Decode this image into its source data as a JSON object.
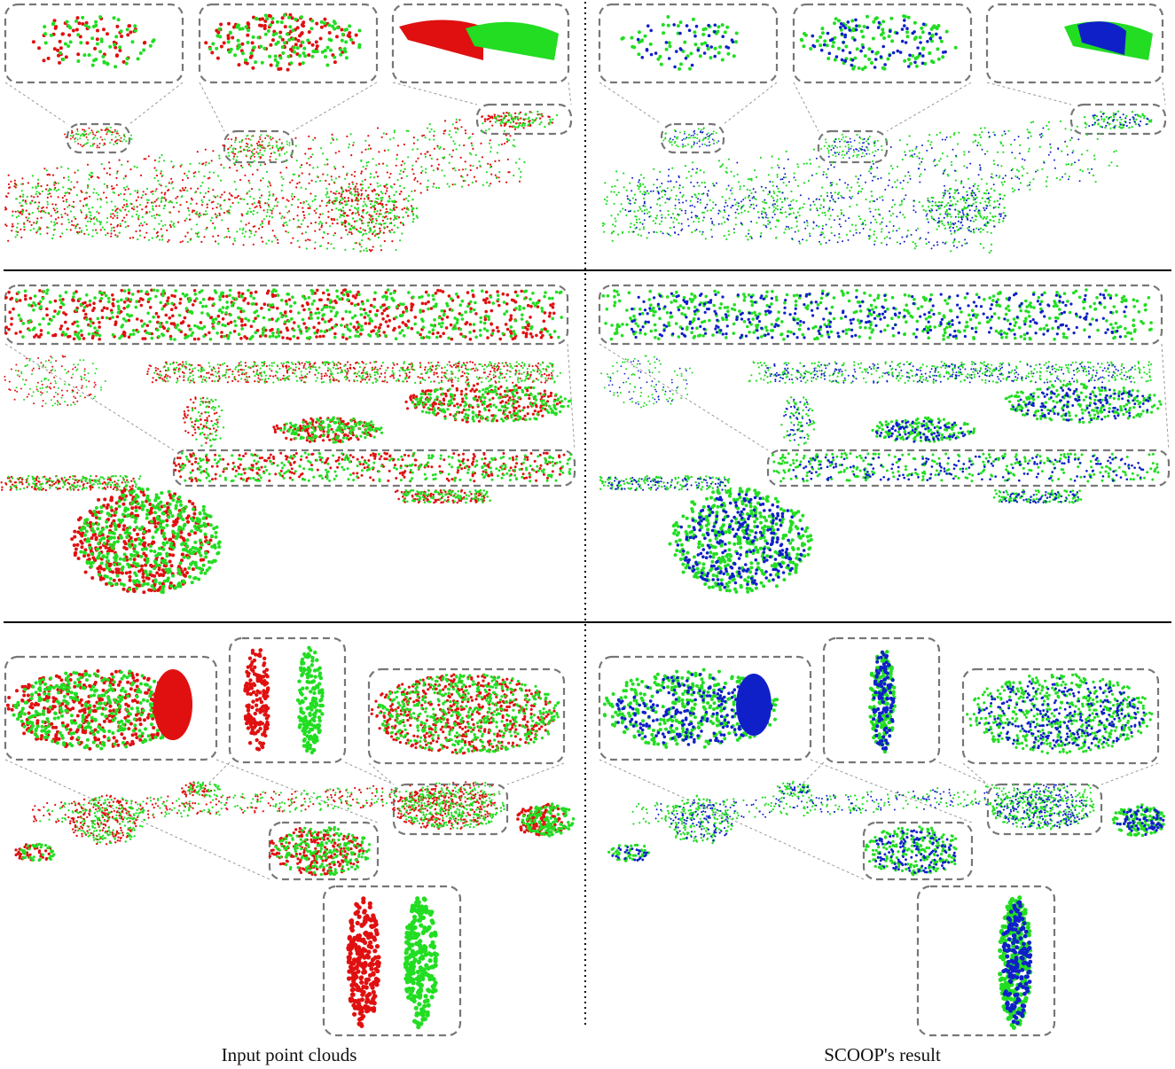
{
  "figure": {
    "captions": {
      "left": "Input point clouds",
      "right": "SCOOP's result"
    },
    "colors": {
      "source_points": "#e01010",
      "target_points": "#22dd22",
      "warped_points": "#1020c8",
      "zoom_box_border": "#777777",
      "row_separator": "#000000",
      "column_separator": "#000000"
    },
    "layout_description": {
      "rows": 3,
      "columns": [
        "input",
        "result"
      ],
      "icons": [
        "point-cloud-scene",
        "zoom-inset-box",
        "car-icon",
        "pole-icon"
      ]
    }
  }
}
